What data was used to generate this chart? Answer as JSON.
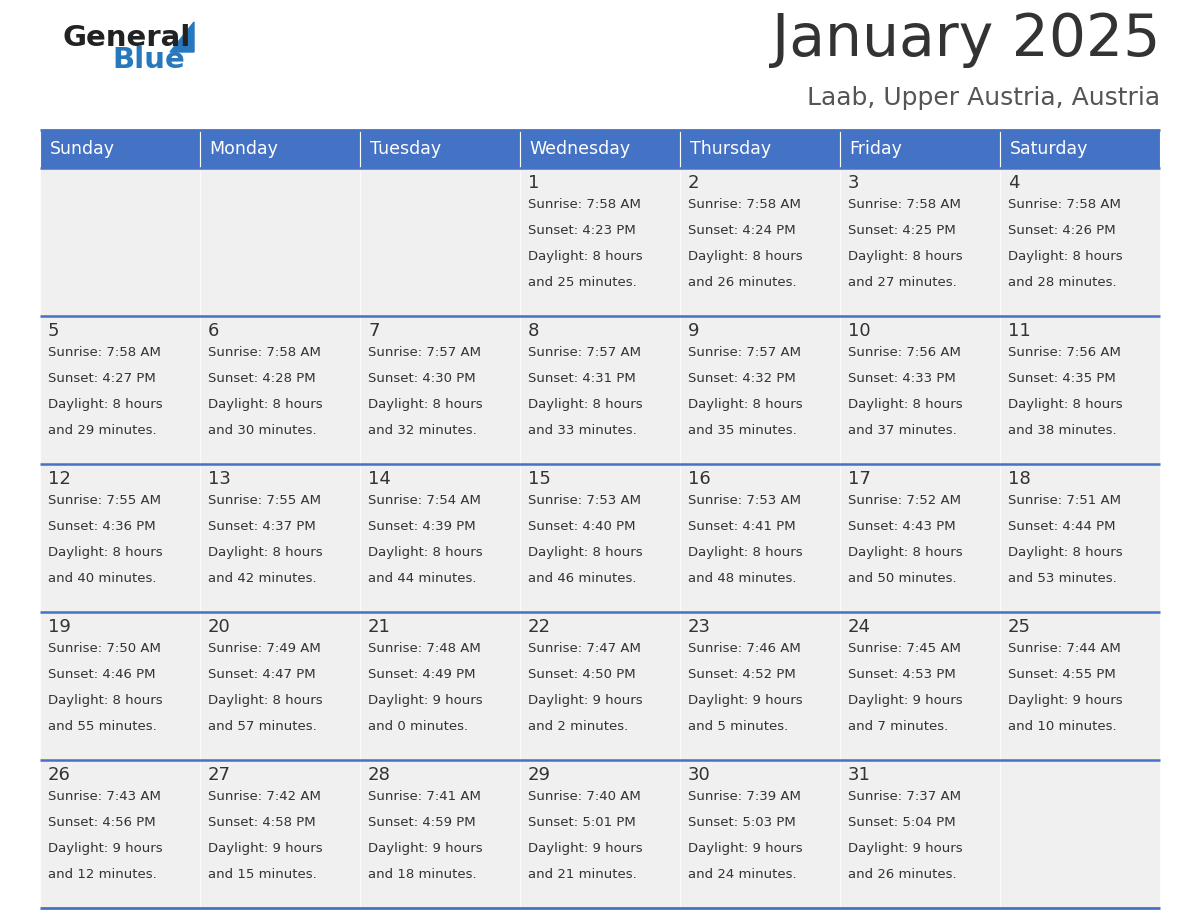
{
  "title": "January 2025",
  "subtitle": "Laab, Upper Austria, Austria",
  "days_of_week": [
    "Sunday",
    "Monday",
    "Tuesday",
    "Wednesday",
    "Thursday",
    "Friday",
    "Saturday"
  ],
  "header_bg": "#4472C4",
  "header_text_color": "#FFFFFF",
  "cell_bg_light": "#F0F0F0",
  "cell_bg_white": "#FFFFFF",
  "cell_text_color": "#333333",
  "day_num_color": "#333333",
  "divider_color": "#4472C4",
  "title_color": "#333333",
  "subtitle_color": "#555555",
  "logo_general_color": "#222222",
  "logo_blue_color": "#2878BE",
  "weeks": [
    [
      {
        "day": "",
        "sunrise": "",
        "sunset": "",
        "daylight": ""
      },
      {
        "day": "",
        "sunrise": "",
        "sunset": "",
        "daylight": ""
      },
      {
        "day": "",
        "sunrise": "",
        "sunset": "",
        "daylight": ""
      },
      {
        "day": "1",
        "sunrise": "7:58 AM",
        "sunset": "4:23 PM",
        "daylight_h": "Daylight: 8 hours",
        "daylight_m": "and 25 minutes."
      },
      {
        "day": "2",
        "sunrise": "7:58 AM",
        "sunset": "4:24 PM",
        "daylight_h": "Daylight: 8 hours",
        "daylight_m": "and 26 minutes."
      },
      {
        "day": "3",
        "sunrise": "7:58 AM",
        "sunset": "4:25 PM",
        "daylight_h": "Daylight: 8 hours",
        "daylight_m": "and 27 minutes."
      },
      {
        "day": "4",
        "sunrise": "7:58 AM",
        "sunset": "4:26 PM",
        "daylight_h": "Daylight: 8 hours",
        "daylight_m": "and 28 minutes."
      }
    ],
    [
      {
        "day": "5",
        "sunrise": "7:58 AM",
        "sunset": "4:27 PM",
        "daylight_h": "Daylight: 8 hours",
        "daylight_m": "and 29 minutes."
      },
      {
        "day": "6",
        "sunrise": "7:58 AM",
        "sunset": "4:28 PM",
        "daylight_h": "Daylight: 8 hours",
        "daylight_m": "and 30 minutes."
      },
      {
        "day": "7",
        "sunrise": "7:57 AM",
        "sunset": "4:30 PM",
        "daylight_h": "Daylight: 8 hours",
        "daylight_m": "and 32 minutes."
      },
      {
        "day": "8",
        "sunrise": "7:57 AM",
        "sunset": "4:31 PM",
        "daylight_h": "Daylight: 8 hours",
        "daylight_m": "and 33 minutes."
      },
      {
        "day": "9",
        "sunrise": "7:57 AM",
        "sunset": "4:32 PM",
        "daylight_h": "Daylight: 8 hours",
        "daylight_m": "and 35 minutes."
      },
      {
        "day": "10",
        "sunrise": "7:56 AM",
        "sunset": "4:33 PM",
        "daylight_h": "Daylight: 8 hours",
        "daylight_m": "and 37 minutes."
      },
      {
        "day": "11",
        "sunrise": "7:56 AM",
        "sunset": "4:35 PM",
        "daylight_h": "Daylight: 8 hours",
        "daylight_m": "and 38 minutes."
      }
    ],
    [
      {
        "day": "12",
        "sunrise": "7:55 AM",
        "sunset": "4:36 PM",
        "daylight_h": "Daylight: 8 hours",
        "daylight_m": "and 40 minutes."
      },
      {
        "day": "13",
        "sunrise": "7:55 AM",
        "sunset": "4:37 PM",
        "daylight_h": "Daylight: 8 hours",
        "daylight_m": "and 42 minutes."
      },
      {
        "day": "14",
        "sunrise": "7:54 AM",
        "sunset": "4:39 PM",
        "daylight_h": "Daylight: 8 hours",
        "daylight_m": "and 44 minutes."
      },
      {
        "day": "15",
        "sunrise": "7:53 AM",
        "sunset": "4:40 PM",
        "daylight_h": "Daylight: 8 hours",
        "daylight_m": "and 46 minutes."
      },
      {
        "day": "16",
        "sunrise": "7:53 AM",
        "sunset": "4:41 PM",
        "daylight_h": "Daylight: 8 hours",
        "daylight_m": "and 48 minutes."
      },
      {
        "day": "17",
        "sunrise": "7:52 AM",
        "sunset": "4:43 PM",
        "daylight_h": "Daylight: 8 hours",
        "daylight_m": "and 50 minutes."
      },
      {
        "day": "18",
        "sunrise": "7:51 AM",
        "sunset": "4:44 PM",
        "daylight_h": "Daylight: 8 hours",
        "daylight_m": "and 53 minutes."
      }
    ],
    [
      {
        "day": "19",
        "sunrise": "7:50 AM",
        "sunset": "4:46 PM",
        "daylight_h": "Daylight: 8 hours",
        "daylight_m": "and 55 minutes."
      },
      {
        "day": "20",
        "sunrise": "7:49 AM",
        "sunset": "4:47 PM",
        "daylight_h": "Daylight: 8 hours",
        "daylight_m": "and 57 minutes."
      },
      {
        "day": "21",
        "sunrise": "7:48 AM",
        "sunset": "4:49 PM",
        "daylight_h": "Daylight: 9 hours",
        "daylight_m": "and 0 minutes."
      },
      {
        "day": "22",
        "sunrise": "7:47 AM",
        "sunset": "4:50 PM",
        "daylight_h": "Daylight: 9 hours",
        "daylight_m": "and 2 minutes."
      },
      {
        "day": "23",
        "sunrise": "7:46 AM",
        "sunset": "4:52 PM",
        "daylight_h": "Daylight: 9 hours",
        "daylight_m": "and 5 minutes."
      },
      {
        "day": "24",
        "sunrise": "7:45 AM",
        "sunset": "4:53 PM",
        "daylight_h": "Daylight: 9 hours",
        "daylight_m": "and 7 minutes."
      },
      {
        "day": "25",
        "sunrise": "7:44 AM",
        "sunset": "4:55 PM",
        "daylight_h": "Daylight: 9 hours",
        "daylight_m": "and 10 minutes."
      }
    ],
    [
      {
        "day": "26",
        "sunrise": "7:43 AM",
        "sunset": "4:56 PM",
        "daylight_h": "Daylight: 9 hours",
        "daylight_m": "and 12 minutes."
      },
      {
        "day": "27",
        "sunrise": "7:42 AM",
        "sunset": "4:58 PM",
        "daylight_h": "Daylight: 9 hours",
        "daylight_m": "and 15 minutes."
      },
      {
        "day": "28",
        "sunrise": "7:41 AM",
        "sunset": "4:59 PM",
        "daylight_h": "Daylight: 9 hours",
        "daylight_m": "and 18 minutes."
      },
      {
        "day": "29",
        "sunrise": "7:40 AM",
        "sunset": "5:01 PM",
        "daylight_h": "Daylight: 9 hours",
        "daylight_m": "and 21 minutes."
      },
      {
        "day": "30",
        "sunrise": "7:39 AM",
        "sunset": "5:03 PM",
        "daylight_h": "Daylight: 9 hours",
        "daylight_m": "and 24 minutes."
      },
      {
        "day": "31",
        "sunrise": "7:37 AM",
        "sunset": "5:04 PM",
        "daylight_h": "Daylight: 9 hours",
        "daylight_m": "and 26 minutes."
      },
      {
        "day": "",
        "sunrise": "",
        "sunset": "",
        "daylight_h": "",
        "daylight_m": ""
      }
    ]
  ]
}
